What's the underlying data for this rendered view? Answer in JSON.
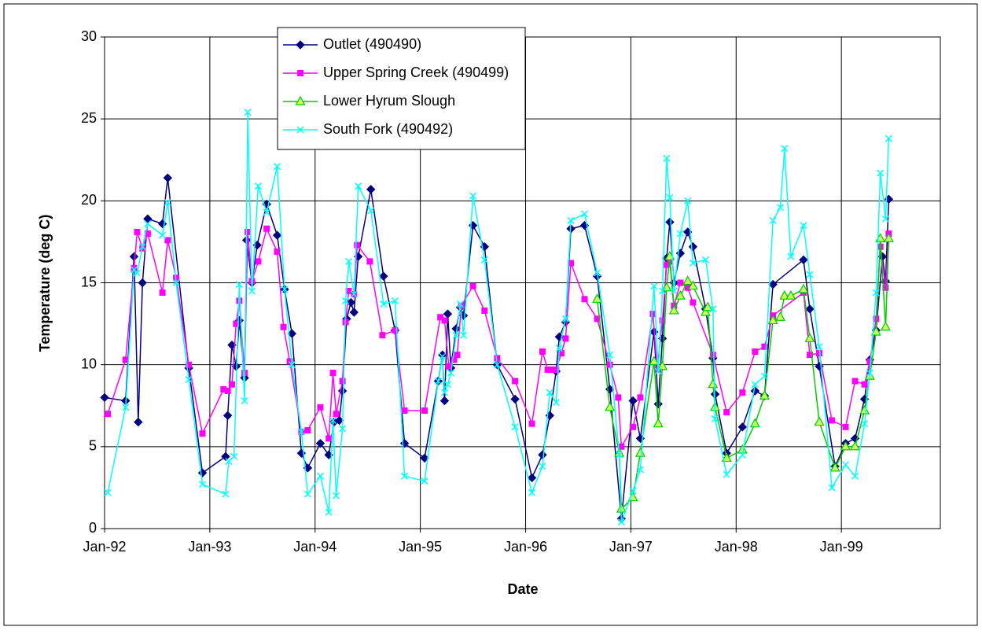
{
  "chart_data": {
    "type": "line",
    "x_label": "Date",
    "y_label": "Temperature (deg C)",
    "xlim": [
      1992,
      1999.94
    ],
    "ylim": [
      0,
      30
    ],
    "xticks": [
      {
        "value": 1992,
        "label": "Jan-92"
      },
      {
        "value": 1993,
        "label": "Jan-93"
      },
      {
        "value": 1994,
        "label": "Jan-94"
      },
      {
        "value": 1995,
        "label": "Jan-95"
      },
      {
        "value": 1996,
        "label": "Jan-96"
      },
      {
        "value": 1997,
        "label": "Jan-97"
      },
      {
        "value": 1998,
        "label": "Jan-98"
      },
      {
        "value": 1999,
        "label": "Jan-99"
      }
    ],
    "yticks": [
      0,
      5,
      10,
      15,
      20,
      25,
      30
    ],
    "grid": true,
    "series": [
      {
        "name": "Outlet (490490)",
        "color": "#000080",
        "marker": "diamond",
        "x": [
          1992.0,
          1992.2,
          1992.28,
          1992.32,
          1992.36,
          1992.41,
          1992.55,
          1992.6,
          1992.8,
          1992.93,
          1993.15,
          1993.17,
          1993.21,
          1993.25,
          1993.28,
          1993.33,
          1993.35,
          1993.4,
          1993.45,
          1993.54,
          1993.64,
          1993.71,
          1993.78,
          1993.87,
          1993.93,
          1994.05,
          1994.13,
          1994.18,
          1994.23,
          1994.26,
          1994.3,
          1994.34,
          1994.37,
          1994.41,
          1994.53,
          1994.65,
          1994.76,
          1994.85,
          1995.04,
          1995.17,
          1995.21,
          1995.23,
          1995.26,
          1995.29,
          1995.34,
          1995.38,
          1995.41,
          1995.5,
          1995.61,
          1995.73,
          1995.9,
          1996.06,
          1996.16,
          1996.23,
          1996.29,
          1996.32,
          1996.38,
          1996.43,
          1996.56,
          1996.68,
          1996.8,
          1996.91,
          1997.02,
          1997.09,
          1997.22,
          1997.26,
          1997.3,
          1997.34,
          1997.37,
          1997.41,
          1997.47,
          1997.54,
          1997.59,
          1997.71,
          1997.78,
          1997.8,
          1997.91,
          1998.06,
          1998.18,
          1998.27,
          1998.35,
          1998.64,
          1998.7,
          1998.79,
          1998.94,
          1999.04,
          1999.13,
          1999.22,
          1999.27,
          1999.33,
          1999.39,
          1999.42,
          1999.45
        ],
        "values": [
          8.0,
          7.8,
          16.6,
          6.5,
          15.0,
          18.9,
          18.6,
          21.4,
          9.8,
          3.4,
          4.4,
          6.9,
          11.2,
          9.9,
          12.7,
          9.2,
          17.6,
          15.0,
          17.3,
          19.8,
          17.9,
          14.6,
          11.9,
          4.6,
          3.7,
          5.2,
          4.5,
          6.5,
          6.6,
          8.4,
          12.8,
          13.8,
          13.2,
          16.6,
          20.7,
          15.4,
          12.1,
          5.2,
          4.3,
          9.0,
          10.6,
          7.8,
          13.1,
          9.8,
          12.2,
          13.5,
          13.0,
          18.5,
          17.2,
          10.0,
          7.9,
          3.1,
          4.5,
          6.9,
          9.6,
          11.7,
          12.6,
          18.3,
          18.5,
          15.4,
          8.5,
          0.6,
          7.8,
          5.5,
          12.0,
          7.6,
          11.6,
          16.5,
          18.7,
          15.0,
          16.8,
          18.1,
          17.2,
          13.4,
          10.4,
          8.2,
          4.6,
          6.2,
          8.4,
          8.1,
          14.9,
          16.4,
          13.4,
          9.9,
          3.8,
          5.2,
          5.5,
          7.9,
          10.3,
          12.1,
          16.6,
          15.1,
          20.1
        ]
      },
      {
        "name": "Upper Spring Creek (490499)",
        "color": "#ff00ff",
        "marker": "square",
        "x": [
          1992.03,
          1992.2,
          1992.28,
          1992.31,
          1992.36,
          1992.41,
          1992.55,
          1992.6,
          1992.68,
          1992.8,
          1992.93,
          1993.13,
          1993.17,
          1993.21,
          1993.25,
          1993.28,
          1993.33,
          1993.36,
          1993.4,
          1993.46,
          1993.54,
          1993.64,
          1993.7,
          1993.76,
          1993.87,
          1993.93,
          1994.05,
          1994.13,
          1994.17,
          1994.2,
          1994.26,
          1994.29,
          1994.32,
          1994.37,
          1994.4,
          1994.52,
          1994.64,
          1994.76,
          1994.85,
          1995.04,
          1995.19,
          1995.23,
          1995.27,
          1995.32,
          1995.35,
          1995.39,
          1995.5,
          1995.61,
          1995.73,
          1995.9,
          1996.06,
          1996.16,
          1996.21,
          1996.25,
          1996.29,
          1996.34,
          1996.38,
          1996.43,
          1996.56,
          1996.68,
          1996.8,
          1996.88,
          1996.91,
          1997.02,
          1997.09,
          1997.21,
          1997.25,
          1997.3,
          1997.34,
          1997.37,
          1997.41,
          1997.47,
          1997.54,
          1997.59,
          1997.78,
          1997.91,
          1998.06,
          1998.18,
          1998.27,
          1998.35,
          1998.64,
          1998.7,
          1998.79,
          1998.91,
          1999.04,
          1999.13,
          1999.22,
          1999.27,
          1999.33,
          1999.37,
          1999.42,
          1999.45
        ],
        "values": [
          7.0,
          10.3,
          15.9,
          18.1,
          17.1,
          18.0,
          14.4,
          17.6,
          15.3,
          10.0,
          5.8,
          8.5,
          8.4,
          8.8,
          12.5,
          13.9,
          9.5,
          18.1,
          15.1,
          16.3,
          18.3,
          16.9,
          12.3,
          10.2,
          5.9,
          6.0,
          7.4,
          5.5,
          9.5,
          7.0,
          9.0,
          12.6,
          14.5,
          14.3,
          17.3,
          16.3,
          11.8,
          12.1,
          7.2,
          7.2,
          12.9,
          12.7,
          9.9,
          10.3,
          10.6,
          13.6,
          14.8,
          13.3,
          10.4,
          9.0,
          6.4,
          10.8,
          9.7,
          9.7,
          9.7,
          10.7,
          11.6,
          16.2,
          14.0,
          12.8,
          10.0,
          8.0,
          5.0,
          6.2,
          8.0,
          13.1,
          9.7,
          12.7,
          16.1,
          16.3,
          13.6,
          15.0,
          14.7,
          13.8,
          10.6,
          7.1,
          8.3,
          10.8,
          11.1,
          13.0,
          14.4,
          10.6,
          10.7,
          6.6,
          6.2,
          9.0,
          8.8,
          10.2,
          12.8,
          17.2,
          14.7,
          18.0
        ]
      },
      {
        "name": "Lower Hyrum Slough",
        "color": "#00cc00",
        "marker": "triangle",
        "x": [
          1996.68,
          1996.8,
          1996.89,
          1996.91,
          1997.02,
          1997.09,
          1997.22,
          1997.26,
          1997.3,
          1997.34,
          1997.37,
          1997.41,
          1997.47,
          1997.54,
          1997.59,
          1997.71,
          1997.73,
          1997.78,
          1997.8,
          1997.91,
          1998.06,
          1998.18,
          1998.27,
          1998.35,
          1998.42,
          1998.46,
          1998.52,
          1998.64,
          1998.7,
          1998.79,
          1998.94,
          1999.04,
          1999.13,
          1999.22,
          1999.27,
          1999.33,
          1999.37,
          1999.42,
          1999.45
        ],
        "values": [
          14.0,
          7.4,
          4.6,
          1.2,
          1.9,
          4.6,
          10.2,
          6.4,
          9.9,
          14.7,
          16.6,
          13.3,
          14.2,
          15.1,
          14.8,
          13.2,
          13.5,
          8.8,
          7.4,
          4.3,
          4.8,
          6.4,
          8.1,
          12.7,
          12.9,
          14.2,
          14.2,
          14.6,
          11.6,
          6.5,
          3.7,
          5.0,
          5.0,
          7.2,
          9.3,
          12.0,
          17.7,
          12.3,
          17.7
        ]
      },
      {
        "name": "South Fork (490492)",
        "color": "#00ffff",
        "marker": "x",
        "x": [
          1992.03,
          1992.2,
          1992.28,
          1992.31,
          1992.36,
          1992.41,
          1992.55,
          1992.6,
          1992.68,
          1992.8,
          1992.93,
          1993.15,
          1993.18,
          1993.23,
          1993.28,
          1993.33,
          1993.36,
          1993.4,
          1993.46,
          1993.54,
          1993.64,
          1993.71,
          1993.78,
          1993.87,
          1993.93,
          1994.05,
          1994.13,
          1994.17,
          1994.2,
          1994.26,
          1994.29,
          1994.32,
          1994.37,
          1994.41,
          1994.53,
          1994.65,
          1994.76,
          1994.85,
          1995.04,
          1995.17,
          1995.21,
          1995.23,
          1995.26,
          1995.29,
          1995.34,
          1995.38,
          1995.41,
          1995.5,
          1995.61,
          1995.73,
          1995.9,
          1996.06,
          1996.16,
          1996.23,
          1996.29,
          1996.32,
          1996.38,
          1996.43,
          1996.56,
          1996.68,
          1996.8,
          1996.89,
          1996.91,
          1997.02,
          1997.09,
          1997.22,
          1997.26,
          1997.3,
          1997.34,
          1997.37,
          1997.41,
          1997.47,
          1997.54,
          1997.59,
          1997.71,
          1997.78,
          1997.8,
          1997.91,
          1998.06,
          1998.18,
          1998.27,
          1998.35,
          1998.42,
          1998.46,
          1998.52,
          1998.64,
          1998.7,
          1998.79,
          1998.91,
          1999.04,
          1999.13,
          1999.22,
          1999.27,
          1999.33,
          1999.37,
          1999.42,
          1999.45
        ],
        "values": [
          2.2,
          7.4,
          15.8,
          15.6,
          17.2,
          18.6,
          17.9,
          19.9,
          15.0,
          9.1,
          2.7,
          2.1,
          4.1,
          4.4,
          14.9,
          7.8,
          25.4,
          14.5,
          20.9,
          19.3,
          22.1,
          14.6,
          10.0,
          5.9,
          2.1,
          3.2,
          1.0,
          6.6,
          2.0,
          6.1,
          13.9,
          16.3,
          14.3,
          20.9,
          19.4,
          13.7,
          13.9,
          3.2,
          2.9,
          9.0,
          10.5,
          8.3,
          8.8,
          9.5,
          11.8,
          13.7,
          11.8,
          20.3,
          16.4,
          10.0,
          6.2,
          2.2,
          3.8,
          8.3,
          7.7,
          11.0,
          12.8,
          18.8,
          19.2,
          15.6,
          10.6,
          4.5,
          0.4,
          2.3,
          3.6,
          14.8,
          9.6,
          14.5,
          22.6,
          20.2,
          14.5,
          18.0,
          20.0,
          16.2,
          16.4,
          13.4,
          6.7,
          3.3,
          4.5,
          8.8,
          9.3,
          18.8,
          19.6,
          23.2,
          16.6,
          18.5,
          15.5,
          11.1,
          2.5,
          3.9,
          3.2,
          6.4,
          9.5,
          14.4,
          21.7,
          18.9,
          23.8
        ]
      }
    ]
  }
}
